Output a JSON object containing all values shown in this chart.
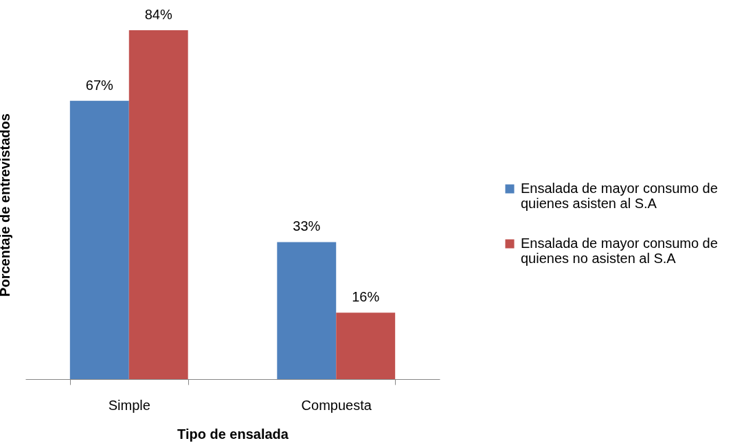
{
  "chart_data": {
    "type": "bar",
    "xlabel": "Tipo de ensalada",
    "ylabel": "Porcentaje de entrevistados",
    "categories": [
      "Simple",
      "Compuesta"
    ],
    "series": [
      {
        "name": "Ensalada de mayor consumo de quienes asisten al S.A",
        "color": "#4f81bd",
        "values": [
          67,
          33
        ],
        "value_labels": [
          "67%",
          "33%"
        ]
      },
      {
        "name": "Ensalada de mayor consumo de quienes no asisten al S.A",
        "color": "#c0504d",
        "values": [
          84,
          16
        ],
        "value_labels": [
          "84%",
          "16%"
        ]
      }
    ],
    "legend": "right"
  }
}
